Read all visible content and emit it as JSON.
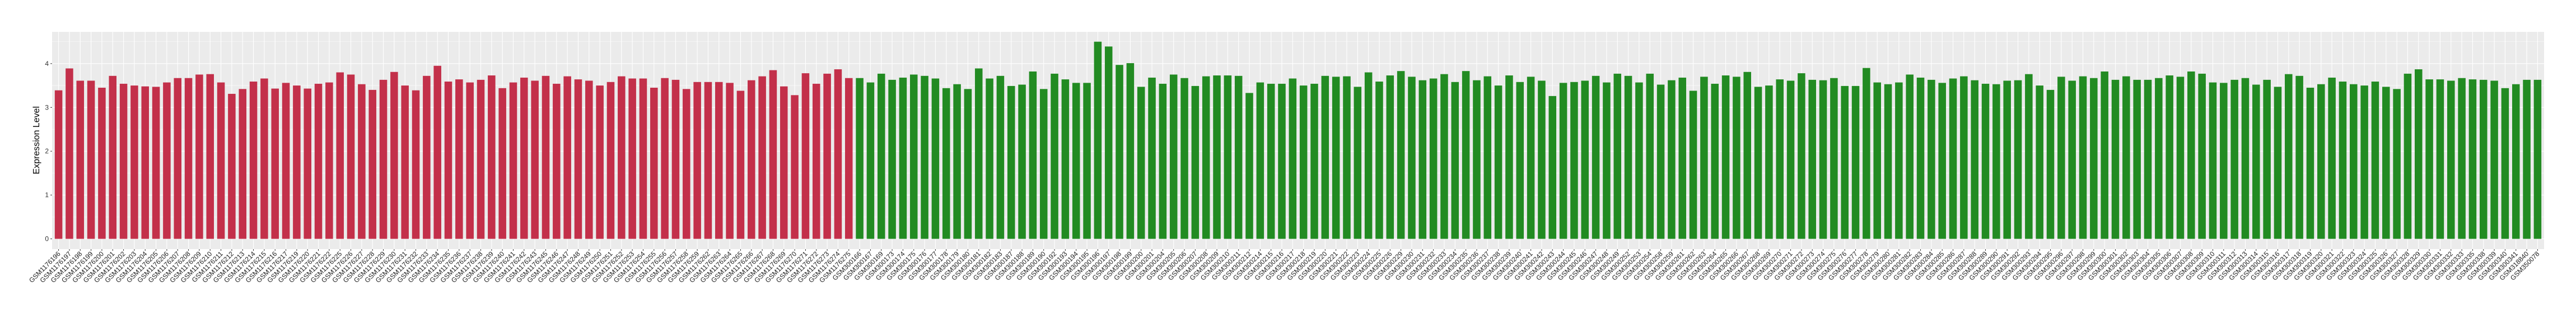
{
  "chart_data": {
    "type": "bar",
    "title": "",
    "xlabel": "",
    "ylabel": "Expression Level",
    "ylim": [
      -0.235,
      4.725
    ],
    "yticks": [
      0,
      1,
      2,
      3,
      4
    ],
    "grid": true,
    "panel_background": "#EBEBEB",
    "legend": "none",
    "series": [
      {
        "color": "#C3304A",
        "categories": [
          "GSM1176196",
          "GSM1176197",
          "GSM1176198",
          "GSM1176199",
          "GSM1176200",
          "GSM1176201",
          "GSM1176202",
          "GSM1176203",
          "GSM1176204",
          "GSM1176205",
          "GSM1176206",
          "GSM1176207",
          "GSM1176208",
          "GSM1176209",
          "GSM1176210",
          "GSM1176211",
          "GSM1176212",
          "GSM1176213",
          "GSM1176214",
          "GSM1176215",
          "GSM1176216",
          "GSM1176217",
          "GSM1176219",
          "GSM1176220",
          "GSM1176221",
          "GSM1176222",
          "GSM1176225",
          "GSM1176226",
          "GSM1176227",
          "GSM1176228",
          "GSM1176229",
          "GSM1176230",
          "GSM1176231",
          "GSM1176232",
          "GSM1176233",
          "GSM1176234",
          "GSM1176235",
          "GSM1176236",
          "GSM1176237",
          "GSM1176238",
          "GSM1176239",
          "GSM1176240",
          "GSM1176241",
          "GSM1176242",
          "GSM1176243",
          "GSM1176245",
          "GSM1176246",
          "GSM1176247",
          "GSM1176248",
          "GSM1176249",
          "GSM1176250",
          "GSM1176251",
          "GSM1176252",
          "GSM1176253",
          "GSM1176254",
          "GSM1176255",
          "GSM1176256",
          "GSM1176257",
          "GSM1176258",
          "GSM1176259",
          "GSM1176262",
          "GSM1176263",
          "GSM1176264",
          "GSM1176265",
          "GSM1176266",
          "GSM1176267",
          "GSM1176268",
          "GSM1176269",
          "GSM1176270",
          "GSM1176271",
          "GSM1176272",
          "GSM1176273",
          "GSM1176274",
          "GSM1176275"
        ],
        "values": [
          3.39,
          3.89,
          3.61,
          3.61,
          3.45,
          3.72,
          3.54,
          3.5,
          3.48,
          3.47,
          3.57,
          3.67,
          3.67,
          3.75,
          3.76,
          3.57,
          3.31,
          3.42,
          3.59,
          3.66,
          3.43,
          3.56,
          3.5,
          3.43,
          3.54,
          3.57,
          3.8,
          3.75,
          3.53,
          3.4,
          3.63,
          3.81,
          3.5,
          3.39,
          3.72,
          3.95,
          3.59,
          3.64,
          3.57,
          3.63,
          3.73,
          3.44,
          3.57,
          3.68,
          3.61,
          3.72,
          3.54,
          3.71,
          3.64,
          3.61,
          3.5,
          3.58,
          3.71,
          3.66,
          3.66,
          3.45,
          3.67,
          3.63,
          3.42,
          3.58,
          3.58,
          3.58,
          3.56,
          3.38,
          3.62,
          3.71,
          3.85,
          3.48,
          3.28,
          3.78,
          3.54,
          3.77,
          3.87,
          3.67
        ]
      },
      {
        "color": "#228B22",
        "categories": [
          "GSM300166",
          "GSM300167",
          "GSM300169",
          "GSM300173",
          "GSM300174",
          "GSM300175",
          "GSM300176",
          "GSM300177",
          "GSM300178",
          "GSM300179",
          "GSM300180",
          "GSM300181",
          "GSM300182",
          "GSM300183",
          "GSM300187",
          "GSM300188",
          "GSM300189",
          "GSM300190",
          "GSM300192",
          "GSM300193",
          "GSM300194",
          "GSM300195",
          "GSM300196",
          "GSM300197",
          "GSM300198",
          "GSM300199",
          "GSM300200",
          "GSM300201",
          "GSM300204",
          "GSM300205",
          "GSM300206",
          "GSM300207",
          "GSM300208",
          "GSM300209",
          "GSM300210",
          "GSM300211",
          "GSM300212",
          "GSM300214",
          "GSM300215",
          "GSM300216",
          "GSM300217",
          "GSM300218",
          "GSM300219",
          "GSM300220",
          "GSM300221",
          "GSM300222",
          "GSM300223",
          "GSM300224",
          "GSM300225",
          "GSM300226",
          "GSM300229",
          "GSM300230",
          "GSM300231",
          "GSM300232",
          "GSM300233",
          "GSM300234",
          "GSM300235",
          "GSM300236",
          "GSM300237",
          "GSM300238",
          "GSM300239",
          "GSM300240",
          "GSM300241",
          "GSM300242",
          "GSM300243",
          "GSM300244",
          "GSM300245",
          "GSM300246",
          "GSM300247",
          "GSM300248",
          "GSM300249",
          "GSM300252",
          "GSM300253",
          "GSM300254",
          "GSM300258",
          "GSM300259",
          "GSM300261",
          "GSM300262",
          "GSM300263",
          "GSM300264",
          "GSM300265",
          "GSM300266",
          "GSM300267",
          "GSM300268",
          "GSM300269",
          "GSM300270",
          "GSM300271",
          "GSM300272",
          "GSM300273",
          "GSM300274",
          "GSM300275",
          "GSM300276",
          "GSM300277",
          "GSM300278",
          "GSM300279",
          "GSM300280",
          "GSM300281",
          "GSM300282",
          "GSM300283",
          "GSM300284",
          "GSM300285",
          "GSM300286",
          "GSM300287",
          "GSM300288",
          "GSM300289",
          "GSM300290",
          "GSM300291",
          "GSM300292",
          "GSM300293",
          "GSM300294",
          "GSM300295",
          "GSM300296",
          "GSM300297",
          "GSM300298",
          "GSM300299",
          "GSM300300",
          "GSM300301",
          "GSM300302",
          "GSM300303",
          "GSM300304",
          "GSM300305",
          "GSM300306",
          "GSM300307",
          "GSM300308",
          "GSM300309",
          "GSM300310",
          "GSM300311",
          "GSM300312",
          "GSM300313",
          "GSM300314",
          "GSM300315",
          "GSM300316",
          "GSM300317",
          "GSM300318",
          "GSM300319",
          "GSM300320",
          "GSM300321",
          "GSM300322",
          "GSM300323",
          "GSM300324",
          "GSM300325",
          "GSM300326",
          "GSM300327",
          "GSM300328",
          "GSM300329",
          "GSM300330",
          "GSM300331",
          "GSM300332",
          "GSM300333",
          "GSM300335",
          "GSM300338",
          "GSM300339",
          "GSM300340",
          "GSM300341",
          "GSM318840",
          "GSM350078"
        ],
        "values": [
          3.67,
          3.57,
          3.77,
          3.63,
          3.68,
          3.75,
          3.72,
          3.66,
          3.44,
          3.53,
          3.42,
          3.89,
          3.66,
          3.72,
          3.49,
          3.52,
          3.82,
          3.42,
          3.77,
          3.64,
          3.56,
          3.56,
          4.5,
          4.39,
          3.97,
          4.01,
          3.47,
          3.68,
          3.54,
          3.75,
          3.67,
          3.49,
          3.71,
          3.73,
          3.73,
          3.72,
          3.33,
          3.57,
          3.54,
          3.54,
          3.66,
          3.5,
          3.54,
          3.72,
          3.7,
          3.71,
          3.47,
          3.8,
          3.59,
          3.73,
          3.83,
          3.7,
          3.62,
          3.66,
          3.76,
          3.58,
          3.83,
          3.62,
          3.71,
          3.5,
          3.73,
          3.58,
          3.7,
          3.61,
          3.26,
          3.56,
          3.58,
          3.61,
          3.72,
          3.57,
          3.77,
          3.72,
          3.57,
          3.77,
          3.52,
          3.62,
          3.68,
          3.38,
          3.7,
          3.54,
          3.73,
          3.7,
          3.81,
          3.47,
          3.5,
          3.64,
          3.61,
          3.78,
          3.63,
          3.62,
          3.67,
          3.49,
          3.49,
          3.9,
          3.57,
          3.53,
          3.57,
          3.75,
          3.68,
          3.63,
          3.56,
          3.66,
          3.71,
          3.62,
          3.54,
          3.53,
          3.61,
          3.62,
          3.76,
          3.5,
          3.4,
          3.7,
          3.61,
          3.71,
          3.67,
          3.82,
          3.63,
          3.71,
          3.63,
          3.63,
          3.67,
          3.73,
          3.7,
          3.82,
          3.77,
          3.57,
          3.56,
          3.63,
          3.67,
          3.52,
          3.63,
          3.47,
          3.76,
          3.72,
          3.45,
          3.53,
          3.68,
          3.59,
          3.53,
          3.5,
          3.59,
          3.47,
          3.42,
          3.77,
          3.87,
          3.64,
          3.64,
          3.61,
          3.67,
          3.64,
          3.63,
          3.61,
          3.44,
          3.53,
          3.63,
          3.63
        ]
      }
    ]
  }
}
